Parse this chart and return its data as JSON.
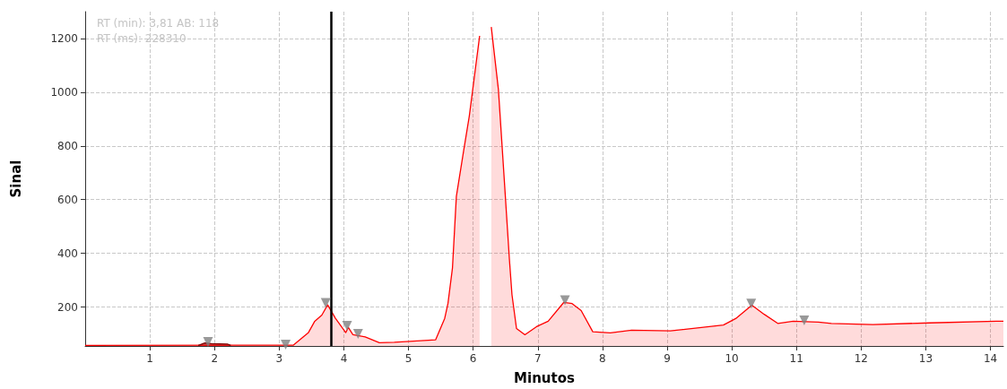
{
  "chart_data": {
    "type": "area",
    "xlabel": "Minutos",
    "ylabel": "Sinal",
    "annotations": [
      "RT (min): 3,81 AB: 118",
      "RT (ms): 228310"
    ],
    "xlim": [
      0,
      14.2
    ],
    "xticks": [
      1,
      2,
      3,
      4,
      5,
      6,
      7,
      8,
      9,
      10,
      11,
      12,
      13,
      14
    ],
    "ylim": [
      55,
      1300
    ],
    "yticks": [
      200,
      400,
      600,
      800,
      1000,
      1200
    ],
    "grid": true,
    "ref_lines": [
      {
        "axis": "x",
        "value": 3.81,
        "color": "#000000"
      }
    ],
    "series": [
      {
        "color": "#ff0000",
        "marker": "none",
        "x": [
          0,
          3.22,
          3.45,
          3.55,
          3.66,
          3.75,
          3.87,
          4.03,
          4.07,
          4.14,
          4.33,
          4.55,
          4.78,
          5.42,
          5.56,
          5.61,
          5.68,
          5.74,
          5.85,
          5.94,
          6.1,
          6.18,
          6.28,
          6.39,
          6.48,
          6.56,
          6.6,
          6.67,
          6.8,
          6.98,
          7.16,
          7.4,
          7.53,
          7.67,
          7.85,
          8.12,
          8.45,
          9.05,
          9.87,
          10.06,
          10.31,
          10.5,
          10.71,
          10.95,
          11.34,
          11.54,
          12.18,
          13.06,
          14.09,
          14.2
        ],
        "values": [
          57,
          58,
          104,
          147,
          170,
          208,
          158,
          105,
          124,
          97,
          89,
          67,
          69,
          78,
          158,
          213,
          346,
          612,
          778,
          911,
          1210,
          null,
          1243,
          1011,
          678,
          379,
          246,
          120,
          97,
          127,
          147,
          217,
          213,
          187,
          108,
          104,
          114,
          111,
          133,
          157,
          207,
          173,
          139,
          147,
          144,
          139,
          135,
          141,
          147,
          147
        ]
      },
      {
        "type": "area",
        "color": "#7b0000",
        "marker": "none",
        "x": [
          1.75,
          1.85,
          1.95,
          2.2,
          2.25
        ],
        "values": [
          57,
          66,
          64,
          62,
          57
        ]
      },
      {
        "type": "scatter",
        "color": "#808080",
        "marker": "triangle",
        "x": [
          1.9,
          3.1,
          3.72,
          4.05,
          4.22,
          7.42,
          10.3,
          11.12
        ],
        "values": [
          70,
          60,
          215,
          130,
          100,
          225,
          213,
          150
        ]
      }
    ]
  }
}
